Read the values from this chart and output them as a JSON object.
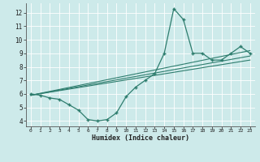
{
  "xlabel": "Humidex (Indice chaleur)",
  "bg_color": "#cdeaea",
  "grid_color": "#b0d8d8",
  "line_color": "#2e7d6e",
  "xlim": [
    -0.5,
    23.5
  ],
  "ylim": [
    3.6,
    12.7
  ],
  "xticks": [
    0,
    1,
    2,
    3,
    4,
    5,
    6,
    7,
    8,
    9,
    10,
    11,
    12,
    13,
    14,
    15,
    16,
    17,
    18,
    19,
    20,
    21,
    22,
    23
  ],
  "yticks": [
    4,
    5,
    6,
    7,
    8,
    9,
    10,
    11,
    12
  ],
  "series1_x": [
    0,
    1,
    2,
    3,
    4,
    5,
    6,
    7,
    8,
    9,
    10,
    11,
    12,
    13,
    14,
    15,
    16,
    17,
    18,
    19,
    20,
    21,
    22,
    23
  ],
  "series1_y": [
    6.0,
    5.9,
    5.7,
    5.6,
    5.2,
    4.8,
    4.1,
    4.0,
    4.1,
    4.6,
    5.8,
    6.5,
    7.0,
    7.5,
    9.0,
    12.3,
    11.5,
    9.0,
    9.0,
    8.5,
    8.5,
    9.0,
    9.5,
    9.0
  ],
  "trend1_x": [
    0,
    23
  ],
  "trend1_y": [
    5.9,
    8.5
  ],
  "trend2_x": [
    0,
    23
  ],
  "trend2_y": [
    5.9,
    8.8
  ],
  "trend3_x": [
    0,
    23
  ],
  "trend3_y": [
    5.9,
    9.2
  ]
}
